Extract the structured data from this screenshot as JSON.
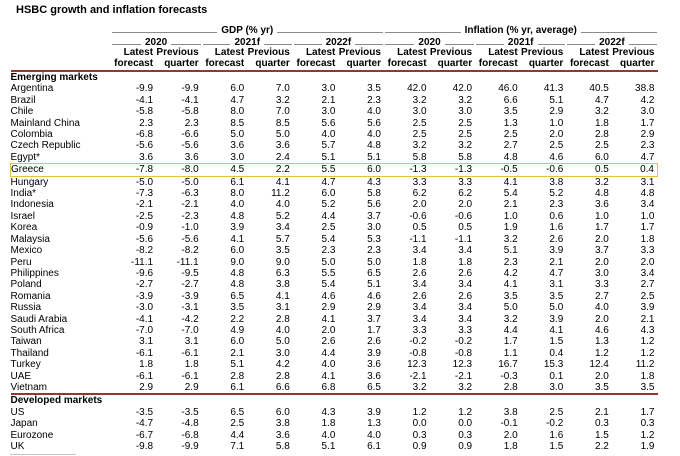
{
  "colors": {
    "accent_red": "#963634",
    "highlight_yellow": "#e2c23f",
    "rule_gray": "#8a8a8a",
    "footer_gray": "#c4c4c4"
  },
  "chart_data": {
    "type": "table",
    "title": "HSBC growth and inflation forecasts",
    "group_headers": [
      "GDP (% yr)",
      "Inflation (% yr, average)"
    ],
    "year_headers": [
      "2020",
      "2021f",
      "2022f",
      "2020",
      "2021f",
      "2022f"
    ],
    "sub_col_headers": [
      [
        "Latest",
        "forecast"
      ],
      [
        "Previous",
        "quarter"
      ]
    ],
    "highlight_country": "Greece",
    "sections": [
      {
        "label": "Emerging markets",
        "rows": [
          {
            "country": "Argentina",
            "values": [
              "-9.9",
              "-9.9",
              "6.0",
              "7.0",
              "3.0",
              "3.5",
              "42.0",
              "42.0",
              "46.0",
              "41.3",
              "40.5",
              "38.8"
            ]
          },
          {
            "country": "Brazil",
            "values": [
              "-4.1",
              "-4.1",
              "4.7",
              "3.2",
              "2.1",
              "2.3",
              "3.2",
              "3.2",
              "6.6",
              "5.1",
              "4.7",
              "4.2"
            ]
          },
          {
            "country": "Chile",
            "values": [
              "-5.8",
              "-5.8",
              "8.0",
              "7.0",
              "3.0",
              "4.0",
              "3.0",
              "3.0",
              "3.5",
              "2.9",
              "3.2",
              "3.0"
            ]
          },
          {
            "country": "Mainland China",
            "values": [
              "2.3",
              "2.3",
              "8.5",
              "8.5",
              "5.6",
              "5.6",
              "2.5",
              "2.5",
              "1.3",
              "1.0",
              "1.8",
              "1.7"
            ]
          },
          {
            "country": "Colombia",
            "values": [
              "-6.8",
              "-6.6",
              "5.0",
              "5.0",
              "4.0",
              "4.0",
              "2.5",
              "2.5",
              "2.5",
              "2.0",
              "2.8",
              "2.9"
            ]
          },
          {
            "country": "Czech Republic",
            "values": [
              "-5.6",
              "-5.6",
              "3.6",
              "3.6",
              "5.7",
              "4.8",
              "3.2",
              "3.2",
              "2.7",
              "2.5",
              "2.5",
              "2.3"
            ]
          },
          {
            "country": "Egypt*",
            "values": [
              "3.6",
              "3.6",
              "3.0",
              "2.4",
              "5.1",
              "5.1",
              "5.8",
              "5.8",
              "4.8",
              "4.6",
              "6.0",
              "4.7"
            ]
          },
          {
            "country": "Greece",
            "values": [
              "-7.8",
              "-8.0",
              "4.5",
              "2.2",
              "5.5",
              "6.0",
              "-1.3",
              "-1.3",
              "-0.5",
              "-0.6",
              "0.5",
              "0.4"
            ]
          },
          {
            "country": "Hungary",
            "values": [
              "-5.0",
              "-5.0",
              "6.1",
              "4.1",
              "4.7",
              "4.3",
              "3.3",
              "3.3",
              "4.1",
              "3.8",
              "3.2",
              "3.1"
            ]
          },
          {
            "country": "India*",
            "values": [
              "-7.3",
              "-6.3",
              "8.0",
              "11.2",
              "6.0",
              "5.8",
              "6.2",
              "6.2",
              "5.4",
              "5.2",
              "4.8",
              "4.8"
            ]
          },
          {
            "country": "Indonesia",
            "values": [
              "-2.1",
              "-2.1",
              "4.0",
              "4.0",
              "5.2",
              "5.6",
              "2.0",
              "2.0",
              "2.1",
              "2.3",
              "3.6",
              "3.4"
            ]
          },
          {
            "country": "Israel",
            "values": [
              "-2.5",
              "-2.3",
              "4.8",
              "5.2",
              "4.4",
              "3.7",
              "-0.6",
              "-0.6",
              "1.0",
              "0.6",
              "1.0",
              "1.0"
            ]
          },
          {
            "country": "Korea",
            "values": [
              "-0.9",
              "-1.0",
              "3.9",
              "3.4",
              "2.5",
              "3.0",
              "0.5",
              "0.5",
              "1.9",
              "1.6",
              "1.7",
              "1.7"
            ]
          },
          {
            "country": "Malaysia",
            "values": [
              "-5.6",
              "-5.6",
              "4.1",
              "5.7",
              "5.4",
              "5.3",
              "-1.1",
              "-1.1",
              "3.2",
              "2.6",
              "2.0",
              "1.8"
            ]
          },
          {
            "country": "Mexico",
            "values": [
              "-8.2",
              "-8.2",
              "6.0",
              "3.5",
              "2.3",
              "2.3",
              "3.4",
              "3.4",
              "5.1",
              "3.9",
              "3.7",
              "3.3"
            ]
          },
          {
            "country": "Peru",
            "values": [
              "-11.1",
              "-11.1",
              "9.0",
              "9.0",
              "5.0",
              "5.0",
              "1.8",
              "1.8",
              "2.3",
              "2.1",
              "2.0",
              "2.0"
            ]
          },
          {
            "country": "Philippines",
            "values": [
              "-9.6",
              "-9.5",
              "4.8",
              "6.3",
              "5.5",
              "6.5",
              "2.6",
              "2.6",
              "4.2",
              "4.7",
              "3.0",
              "3.4"
            ]
          },
          {
            "country": "Poland",
            "values": [
              "-2.7",
              "-2.7",
              "4.8",
              "3.8",
              "5.4",
              "5.1",
              "3.4",
              "3.4",
              "4.1",
              "3.1",
              "3.3",
              "2.7"
            ]
          },
          {
            "country": "Romania",
            "values": [
              "-3.9",
              "-3.9",
              "6.5",
              "4.1",
              "4.6",
              "4.6",
              "2.6",
              "2.6",
              "3.5",
              "3.5",
              "2.7",
              "2.5"
            ]
          },
          {
            "country": "Russia",
            "values": [
              "-3.0",
              "-3.1",
              "3.5",
              "3.1",
              "2.9",
              "2.9",
              "3.4",
              "3.4",
              "5.0",
              "5.0",
              "4.0",
              "3.9"
            ]
          },
          {
            "country": "Saudi Arabia",
            "values": [
              "-4.1",
              "-4.2",
              "2.2",
              "2.8",
              "4.1",
              "3.7",
              "3.4",
              "3.4",
              "3.2",
              "3.9",
              "2.0",
              "2.1"
            ]
          },
          {
            "country": "South Africa",
            "values": [
              "-7.0",
              "-7.0",
              "4.9",
              "4.0",
              "2.0",
              "1.7",
              "3.3",
              "3.3",
              "4.4",
              "4.1",
              "4.6",
              "4.3"
            ]
          },
          {
            "country": "Taiwan",
            "values": [
              "3.1",
              "3.1",
              "6.0",
              "5.0",
              "2.6",
              "2.6",
              "-0.2",
              "-0.2",
              "1.7",
              "1.5",
              "1.3",
              "1.2"
            ]
          },
          {
            "country": "Thailand",
            "values": [
              "-6.1",
              "-6.1",
              "2.1",
              "3.0",
              "4.4",
              "3.9",
              "-0.8",
              "-0.8",
              "1.1",
              "0.4",
              "1.2",
              "1.2"
            ]
          },
          {
            "country": "Turkey",
            "values": [
              "1.8",
              "1.8",
              "5.1",
              "4.2",
              "4.0",
              "3.6",
              "12.3",
              "12.3",
              "16.7",
              "15.3",
              "12.4",
              "11.2"
            ]
          },
          {
            "country": "UAE",
            "values": [
              "-6.1",
              "-6.1",
              "2.8",
              "2.8",
              "4.1",
              "3.6",
              "-2.1",
              "-2.1",
              "-0.3",
              "0.1",
              "2.0",
              "1.8"
            ]
          },
          {
            "country": "Vietnam",
            "values": [
              "2.9",
              "2.9",
              "6.1",
              "6.6",
              "6.8",
              "6.5",
              "3.2",
              "3.2",
              "2.8",
              "3.0",
              "3.5",
              "3.5"
            ]
          }
        ]
      },
      {
        "label": "Developed markets",
        "rows": [
          {
            "country": "US",
            "values": [
              "-3.5",
              "-3.5",
              "6.5",
              "6.0",
              "4.3",
              "3.9",
              "1.2",
              "1.2",
              "3.8",
              "2.5",
              "2.1",
              "1.7"
            ]
          },
          {
            "country": "Japan",
            "values": [
              "-4.7",
              "-4.8",
              "2.5",
              "3.8",
              "1.8",
              "1.3",
              "0.0",
              "0.0",
              "-0.1",
              "-0.2",
              "0.3",
              "0.3"
            ]
          },
          {
            "country": "Eurozone",
            "values": [
              "-6.7",
              "-6.8",
              "4.4",
              "3.6",
              "4.0",
              "4.0",
              "0.3",
              "0.3",
              "2.0",
              "1.6",
              "1.5",
              "1.2"
            ]
          },
          {
            "country": "UK",
            "values": [
              "-9.8",
              "-9.9",
              "7.1",
              "5.8",
              "5.1",
              "6.1",
              "0.9",
              "0.9",
              "1.8",
              "1.5",
              "2.2",
              "1.9"
            ]
          }
        ]
      }
    ]
  }
}
